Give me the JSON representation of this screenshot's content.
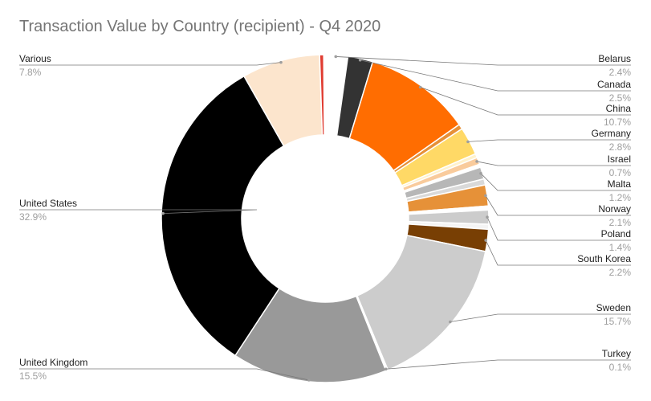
{
  "chart_data": {
    "type": "pie",
    "title": "Transaction Value by Country (recipient) - Q4 2020",
    "donut": true,
    "legend": "none",
    "slices": [
      {
        "name": "Belarus",
        "value": 2.4,
        "label": "2.4%",
        "color": "#ffffff"
      },
      {
        "name": "Canada",
        "value": 2.5,
        "label": "2.5%",
        "color": "#333333"
      },
      {
        "name": "China",
        "value": 10.7,
        "label": "10.7%",
        "color": "#ff6d01"
      },
      {
        "name": "",
        "value": 0.5,
        "label": "",
        "color": "#e69138"
      },
      {
        "name": "Germany",
        "value": 2.8,
        "label": "2.8%",
        "color": "#ffd966"
      },
      {
        "name": "",
        "value": 0.4,
        "label": "",
        "color": "#fff2cc"
      },
      {
        "name": "Israel",
        "value": 0.7,
        "label": "0.7%",
        "color": "#f9cb9c"
      },
      {
        "name": "",
        "value": 0.3,
        "label": "",
        "color": "#ffffff"
      },
      {
        "name": "Malta",
        "value": 1.2,
        "label": "1.2%",
        "color": "#b7b7b7"
      },
      {
        "name": "",
        "value": 0.6,
        "label": "",
        "color": "#d9d9d9"
      },
      {
        "name": "Norway",
        "value": 2.1,
        "label": "2.1%",
        "color": "#e69138"
      },
      {
        "name": "",
        "value": 0.4,
        "label": "",
        "color": "#ffffff"
      },
      {
        "name": "Poland",
        "value": 1.4,
        "label": "1.4%",
        "color": "#cccccc"
      },
      {
        "name": "",
        "value": 0.5,
        "label": "",
        "color": "#f4f4f4"
      },
      {
        "name": "South Korea",
        "value": 2.2,
        "label": "2.2%",
        "color": "#783f04"
      },
      {
        "name": "Sweden",
        "value": 15.7,
        "label": "15.7%",
        "color": "#cccccc"
      },
      {
        "name": "",
        "value": 0.1,
        "label": "",
        "color": "#d9ead3"
      },
      {
        "name": "Turkey",
        "value": 0.1,
        "label": "0.1%",
        "color": "#ffff00"
      },
      {
        "name": "United Kingdom",
        "value": 15.5,
        "label": "15.5%",
        "color": "#999999"
      },
      {
        "name": "United States",
        "value": 32.9,
        "label": "32.9%",
        "color": "#000000"
      },
      {
        "name": "Various",
        "value": 7.8,
        "label": "7.8%",
        "color": "#fce5cd"
      },
      {
        "name": "",
        "value": 0.4,
        "label": "",
        "color": "#e03c31"
      }
    ]
  }
}
